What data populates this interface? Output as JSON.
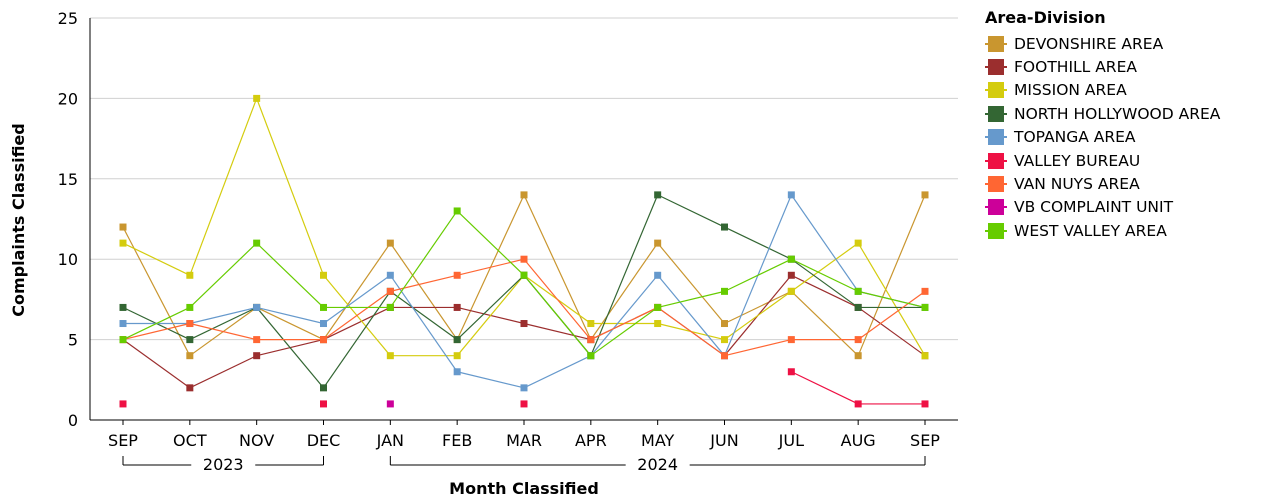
{
  "chart_data": {
    "type": "line",
    "xlabel": "Month Classified",
    "ylabel": "Complaints Classified",
    "ylim": [
      0,
      25
    ],
    "yticks": [
      0,
      5,
      10,
      15,
      20,
      25
    ],
    "grid": true,
    "legend_placement": "right",
    "categories": [
      "SEP",
      "OCT",
      "NOV",
      "DEC",
      "JAN",
      "FEB",
      "MAR",
      "APR",
      "MAY",
      "JUN",
      "JUL",
      "AUG",
      "SEP"
    ],
    "year_groups": [
      {
        "label": "2023",
        "start": 0,
        "end": 3
      },
      {
        "label": "2024",
        "start": 4,
        "end": 12
      }
    ],
    "legend_title": "Area-Division",
    "series": [
      {
        "name": "DEVONSHIRE AREA",
        "color": "#C9962F",
        "values": [
          12,
          4,
          7,
          5,
          11,
          5,
          14,
          5,
          11,
          6,
          8,
          4,
          14
        ]
      },
      {
        "name": "FOOTHILL AREA",
        "color": "#9B2E2E",
        "values": [
          5,
          2,
          4,
          5,
          7,
          7,
          6,
          5,
          7,
          4,
          9,
          7,
          4
        ]
      },
      {
        "name": "MISSION AREA",
        "color": "#D4CC0E",
        "values": [
          11,
          9,
          20,
          9,
          4,
          4,
          9,
          6,
          6,
          5,
          8,
          11,
          4
        ]
      },
      {
        "name": "NORTH HOLLYWOOD AREA",
        "color": "#336633",
        "values": [
          7,
          5,
          7,
          2,
          8,
          5,
          9,
          4,
          14,
          12,
          10,
          7,
          7
        ]
      },
      {
        "name": "TOPANGA AREA",
        "color": "#6699CC",
        "values": [
          6,
          6,
          7,
          6,
          9,
          3,
          2,
          4,
          9,
          4,
          14,
          8,
          7
        ]
      },
      {
        "name": "VALLEY BUREAU",
        "color": "#EE1144",
        "values": [
          1,
          null,
          null,
          1,
          null,
          null,
          1,
          null,
          null,
          null,
          3,
          1,
          1
        ]
      },
      {
        "name": "VAN NUYS AREA",
        "color": "#FF6633",
        "values": [
          5,
          6,
          5,
          5,
          8,
          9,
          10,
          5,
          7,
          4,
          5,
          5,
          8
        ]
      },
      {
        "name": "VB COMPLAINT UNIT",
        "color": "#CC0099",
        "values": [
          null,
          null,
          null,
          null,
          1,
          null,
          null,
          null,
          null,
          null,
          null,
          null,
          null
        ]
      },
      {
        "name": "WEST VALLEY AREA",
        "color": "#66CC00",
        "values": [
          5,
          7,
          11,
          7,
          7,
          13,
          9,
          4,
          7,
          8,
          10,
          8,
          7
        ]
      }
    ]
  }
}
